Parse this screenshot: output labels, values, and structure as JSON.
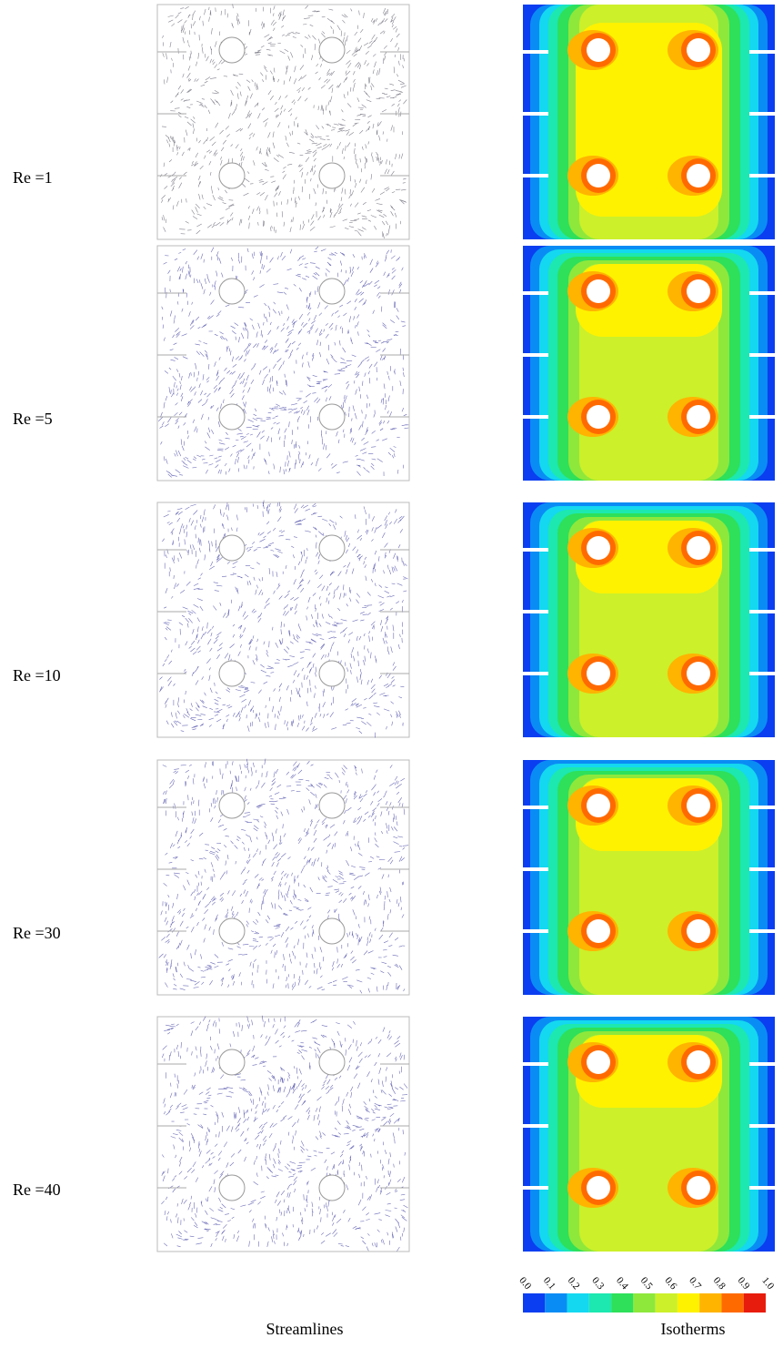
{
  "rows": [
    {
      "label": "Re =1"
    },
    {
      "label": "Re =5"
    },
    {
      "label": "Re =10"
    },
    {
      "label": "Re =30"
    },
    {
      "label": "Re =40"
    }
  ],
  "columns": [
    "Streamlines",
    "Isotherms"
  ],
  "colorbar": {
    "ticks": [
      {
        "value": 0,
        "label": "0.0"
      },
      {
        "value": 0.1,
        "label": "0.1"
      },
      {
        "value": 0.2,
        "label": "0.2"
      },
      {
        "value": 0.3,
        "label": "0.3"
      },
      {
        "value": 0.4,
        "label": "0.4"
      },
      {
        "value": 0.5,
        "label": "0.5"
      },
      {
        "value": 0.6,
        "label": "0.6"
      },
      {
        "value": 0.7,
        "label": "0.7"
      },
      {
        "value": 0.8,
        "label": "0.8"
      },
      {
        "value": 0.9,
        "label": "0.9"
      },
      {
        "value": 1,
        "label": "1.0"
      }
    ],
    "colors": [
      "#0a3ef0",
      "#0a8cf5",
      "#14d8f0",
      "#1ce8b0",
      "#2ee05a",
      "#8ee83c",
      "#ccf02a",
      "#fff200",
      "#ffb400",
      "#ff6a00",
      "#e81c0c"
    ]
  }
}
